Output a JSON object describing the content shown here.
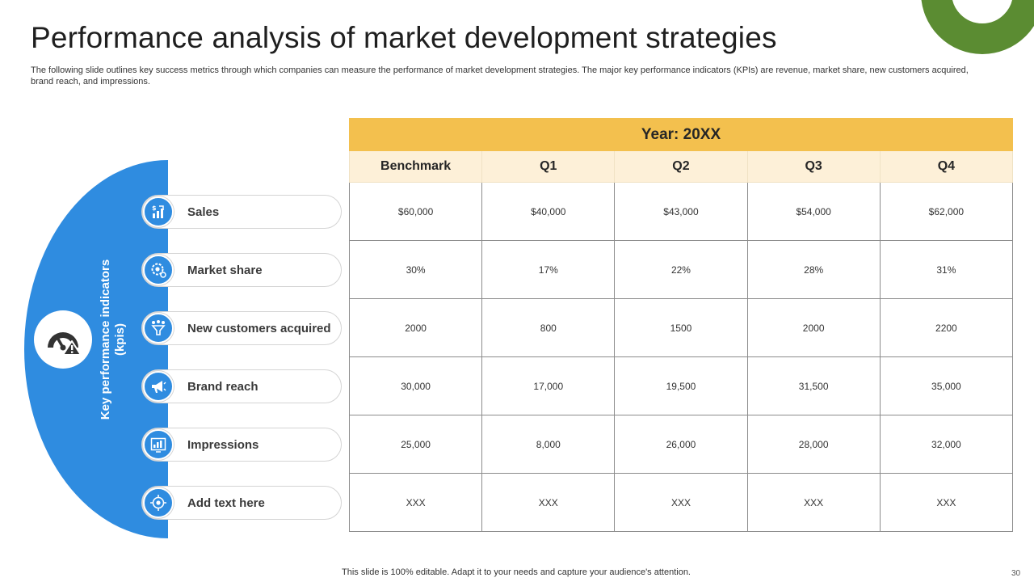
{
  "slide": {
    "title": "Performance analysis of market development strategies",
    "subtitle": "The following slide outlines key success metrics through which companies can measure the performance of market development strategies. The major key performance indicators (KPIs) are revenue, market share, new customers acquired, brand reach, and impressions.",
    "kpi_panel_label": "Key performance indicators (kpis)",
    "footer_note": "This slide is 100% editable. Adapt it to your needs and capture your audience's attention.",
    "page_number": "30"
  },
  "colors": {
    "accent_blue": "#2f8ce0",
    "header_gold": "#f3c04e",
    "subheader_cream": "#fdf0d8",
    "corner_green": "#5b8c32"
  },
  "kpis": [
    {
      "label": "Sales",
      "icon": "sales-chart-icon"
    },
    {
      "label": "Market share",
      "icon": "market-share-gear-icon"
    },
    {
      "label": "New customers acquired",
      "icon": "customer-funnel-icon"
    },
    {
      "label": "Brand reach",
      "icon": "megaphone-icon"
    },
    {
      "label": "Impressions",
      "icon": "impressions-dashboard-icon"
    },
    {
      "label": "Add  text here",
      "icon": "target-icon"
    }
  ],
  "table": {
    "year_header": "Year: 20XX",
    "columns": [
      "Benchmark",
      "Q1",
      "Q2",
      "Q3",
      "Q4"
    ],
    "rows": [
      [
        "$60,000",
        "$40,000",
        "$43,000",
        "$54,000",
        "$62,000"
      ],
      [
        "30%",
        "17%",
        "22%",
        "28%",
        "31%"
      ],
      [
        "2000",
        "800",
        "1500",
        "2000",
        "2200"
      ],
      [
        "30,000",
        "17,000",
        "19,500",
        "31,500",
        "35,000"
      ],
      [
        "25,000",
        "8,000",
        "26,000",
        "28,000",
        "32,000"
      ],
      [
        "XXX",
        "XXX",
        "XXX",
        "XXX",
        "XXX"
      ]
    ]
  }
}
